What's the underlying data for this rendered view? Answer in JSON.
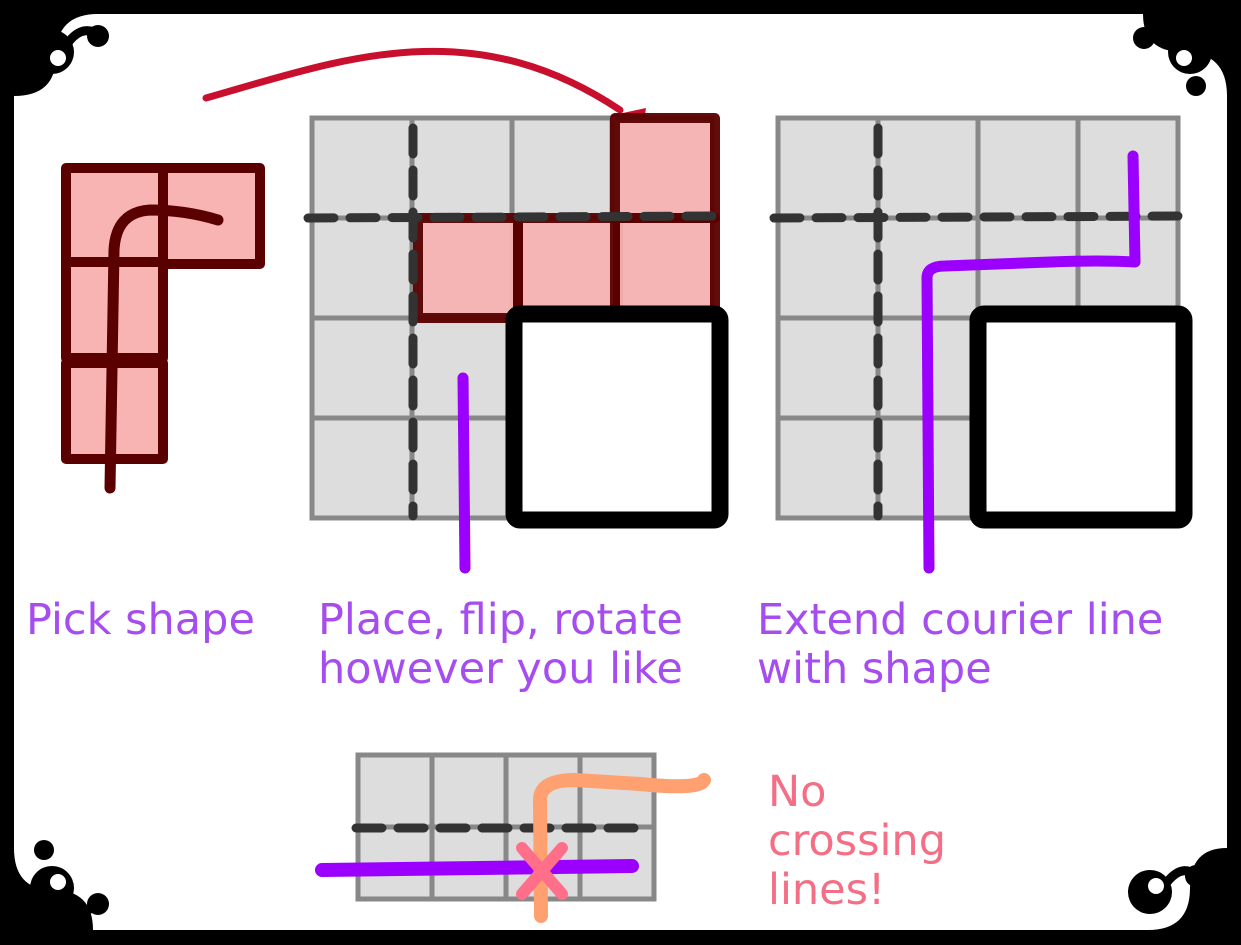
{
  "colors": {
    "frame": "#000000",
    "card": "#ffffff",
    "grid_fill": "#dddddd",
    "grid_line": "#888888",
    "dash": "#333333",
    "shape_fill": "#f8b3b3",
    "shape_border": "#5a0000",
    "courier_line": "#9b00ff",
    "arrow": "#c8102e",
    "other_line": "#ffa070",
    "cross_mark": "#ff6f8a",
    "caption_purple": "#a64df0",
    "caption_pink": "#f46f86"
  },
  "steps": [
    {
      "caption": "Pick shape"
    },
    {
      "caption": "Place, flip, rotate\nhowever you like"
    },
    {
      "caption": "Extend courier line\nwith shape"
    }
  ],
  "rule": {
    "caption": "No\ncrossing\nlines!"
  }
}
